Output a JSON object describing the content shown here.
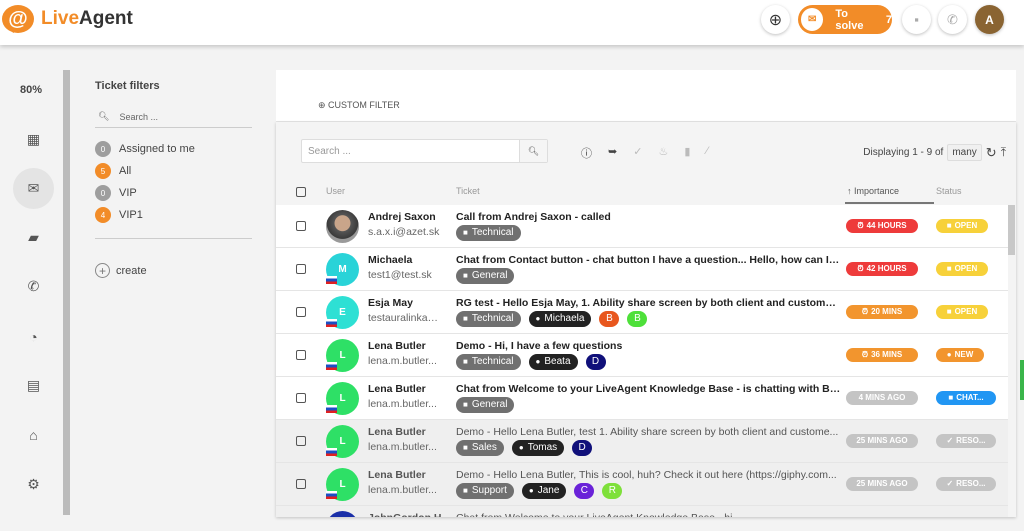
{
  "app": {
    "name_a": "Live",
    "name_b": "Agent"
  },
  "topbar": {
    "to_solve_label": "To solve",
    "to_solve_count": "7",
    "avatar_initial": "A",
    "accent": "#f28c28"
  },
  "nav": {
    "zoom": "80%",
    "items": [
      "dashboard",
      "tickets",
      "chats",
      "calls",
      "reports",
      "contacts",
      "knowledgebase",
      "settings"
    ]
  },
  "filters": {
    "title": "Ticket filters",
    "search_placeholder": "Search ...",
    "items": [
      {
        "count": "0",
        "label": "Assigned to me",
        "color": "#9e9e9e"
      },
      {
        "count": "5",
        "label": "All",
        "color": "#f28c28"
      },
      {
        "count": "0",
        "label": "VIP",
        "color": "#9e9e9e"
      },
      {
        "count": "4",
        "label": "VIP1",
        "color": "#f28c28"
      }
    ],
    "create_label": "create"
  },
  "custom_filter": "CUSTOM FILTER",
  "list": {
    "search_placeholder": "Search ...",
    "displaying": "Displaying 1 - 9 of",
    "many": "many",
    "headers": {
      "user": "User",
      "ticket": "Ticket",
      "importance": "↑ Importance",
      "status": "Status"
    },
    "rows": [
      {
        "name": "Andrej Saxon",
        "email": "s.a.x.i@azet.sk",
        "avatar": "",
        "avatar_color": "#6a6a6a",
        "flag": false,
        "subject": "Call from Andrej Saxon - called",
        "tags": [
          {
            "t": "dept",
            "v": "Technical"
          }
        ],
        "importance": "44 HOURS",
        "imp_color": "#ee3b3b",
        "status": "OPEN",
        "st_color": "#f7d13a",
        "resolved": false
      },
      {
        "name": "Michaela",
        "email": "test1@test.sk",
        "avatar": "M",
        "avatar_color": "#29d3d8",
        "flag": true,
        "subject": "Chat from Contact button - chat button I have a question... Hello, how can I help you?",
        "tags": [
          {
            "t": "dept",
            "v": "General"
          }
        ],
        "importance": "42 HOURS",
        "imp_color": "#ee3b3b",
        "status": "OPEN",
        "st_color": "#f7d13a",
        "resolved": false
      },
      {
        "name": "Esja May",
        "email": "testauralinka@...",
        "avatar": "E",
        "avatar_color": "#2ee0d4",
        "flag": true,
        "subject": "RG test - Hello Esja May, 1. Ability share screen by both client and customer s...",
        "tags": [
          {
            "t": "dept",
            "v": "Technical"
          },
          {
            "t": "agent",
            "v": "Michaela"
          },
          {
            "t": "ini",
            "v": "B",
            "c": "#e8571e"
          },
          {
            "t": "ini",
            "v": "B",
            "c": "#4ee03a"
          }
        ],
        "importance": "20 MINS",
        "imp_color": "#f2952e",
        "status": "OPEN",
        "st_color": "#f7d13a",
        "resolved": false
      },
      {
        "name": "Lena Butler",
        "email": "lena.m.butler...",
        "avatar": "L",
        "avatar_color": "#2ee066",
        "flag": true,
        "subject": "Demo - Hi, I have a few questions",
        "tags": [
          {
            "t": "dept",
            "v": "Technical"
          },
          {
            "t": "agent",
            "v": "Beata"
          },
          {
            "t": "ini",
            "v": "D",
            "c": "#10107a"
          }
        ],
        "importance": "36 MINS",
        "imp_color": "#f2952e",
        "status": "NEW",
        "st_color": "#f2952e",
        "resolved": false
      },
      {
        "name": "Lena Butler",
        "email": "lena.m.butler...",
        "avatar": "L",
        "avatar_color": "#2ee066",
        "flag": true,
        "subject": "Chat from Welcome to your LiveAgent Knowledge Base - is chatting with Beata",
        "tags": [
          {
            "t": "dept",
            "v": "General"
          }
        ],
        "importance": "4 MINS AGO",
        "imp_color": "#c4c4c4",
        "status": "CHAT...",
        "st_color": "#2196f3",
        "resolved": false
      },
      {
        "name": "Lena Butler",
        "email": "lena.m.butler...",
        "avatar": "L",
        "avatar_color": "#2ee066",
        "flag": true,
        "subject": "Demo - Hello Lena Butler, test 1. Ability share screen by both client and custome...",
        "tags": [
          {
            "t": "dept",
            "v": "Sales"
          },
          {
            "t": "agent",
            "v": "Tomas"
          },
          {
            "t": "ini",
            "v": "D",
            "c": "#10107a"
          }
        ],
        "importance": "25 MINS AGO",
        "imp_color": "#c4c4c4",
        "status": "RESO...",
        "st_color": "#c4c4c4",
        "resolved": true
      },
      {
        "name": "Lena Butler",
        "email": "lena.m.butler...",
        "avatar": "L",
        "avatar_color": "#2ee066",
        "flag": true,
        "subject": "Demo - Hello Lena Butler, This is cool, huh? Check it out here (https://giphy.com...",
        "tags": [
          {
            "t": "dept",
            "v": "Support"
          },
          {
            "t": "agent",
            "v": "Jane"
          },
          {
            "t": "ini",
            "v": "C",
            "c": "#6a22d8"
          },
          {
            "t": "ini",
            "v": "R",
            "c": "#7ee03a"
          }
        ],
        "importance": "25 MINS AGO",
        "imp_color": "#c4c4c4",
        "status": "RESO...",
        "st_color": "#c4c4c4",
        "resolved": true
      },
      {
        "name": "JohnGordon H...",
        "email": "",
        "avatar": "",
        "avatar_color": "#1a2fa8",
        "flag": false,
        "subject": "Chat from Welcome to your LiveAgent Knowledge Base - hi",
        "tags": [],
        "importance": "",
        "imp_color": "#c4c4c4",
        "status": "",
        "st_color": "#c4c4c4",
        "resolved": true
      }
    ]
  }
}
